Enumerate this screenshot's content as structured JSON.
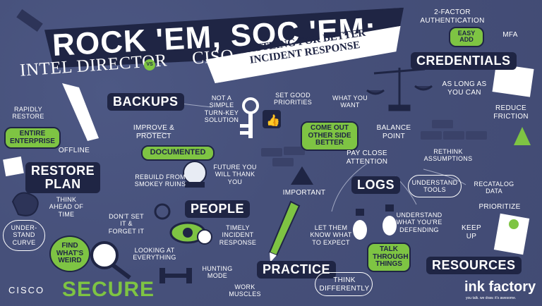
{
  "title": {
    "main": "ROCK 'EM, SOC 'EM:",
    "subtitle_left_1": "INTEL DIRECTOR",
    "vs": "VS",
    "subtitle_left_2": "CISO",
    "ribbon": "BATTLING FOR BETTER INCIDENT RESPONSE"
  },
  "credentials": {
    "label": "CREDENTIALS",
    "two_factor": "2-FACTOR AUTHENTICATION",
    "easy_add": "EASY ADD",
    "mfa": "MFA",
    "as_long": "AS LONG AS YOU CAN",
    "reduce": "REDUCE FRICTION"
  },
  "backups": {
    "label": "BACKUPS",
    "not_simple": "NOT A SIMPLE TURN-KEY SOLUTION",
    "improve": "IMPROVE & PROTECT",
    "rapidly": "RAPIDLY RESTORE",
    "entire": "ENTIRE ENTERPRISE",
    "offline": "OFFLINE"
  },
  "balance": {
    "set_good": "SET GOOD PRIORITIES",
    "what_you_want": "WHAT YOU WANT",
    "come_out": "COME OUT OTHER SIDE BETTER",
    "balance_point": "BALANCE POINT",
    "pay_close": "PAY CLOSE ATTENTION"
  },
  "restore": {
    "label_1": "RESTORE",
    "label_2": "PLAN",
    "documented": "DOCUMENTED",
    "future": "FUTURE YOU WILL THANK YOU",
    "rebuild": "REBUILD FROM SMOKEY RUINS",
    "think_ahead": "THINK AHEAD OF TIME"
  },
  "important": "IMPORTANT",
  "logs": {
    "label": "LOGS",
    "rethink": "RETHINK ASSUMPTIONS",
    "understand_tools": "UNDERSTAND TOOLS",
    "recatalog": "RECATALOG DATA",
    "prioritize": "PRIORITIZE",
    "understand_defending": "UNDERSTAND WHAT YOU'RE DEFENDING"
  },
  "people": {
    "label": "PEOPLE",
    "dont_set": "DON'T SET IT & FORGET IT",
    "timely": "TIMELY INCIDENT RESPONSE",
    "looking": "LOOKING AT EVERYTHING",
    "hunting": "HUNTING MODE",
    "work_muscles": "WORK MUSCLES"
  },
  "understand_curve": "UNDER-STAND CURVE",
  "find_weird": "FIND WHAT'S WEIRD",
  "secure": "SECURE",
  "cisco": "CISCO",
  "practice": {
    "label": "PRACTICE",
    "let_them_know": "LET THEM KNOW WHAT TO EXPECT",
    "talk_through": "TALK THROUGH THINGS",
    "think_differently": "THINK DIFFERENTLY"
  },
  "resources": {
    "label": "RESOURCES",
    "keep_up": "KEEP UP"
  },
  "brand": {
    "name": "ink factory",
    "tagline": "you talk. we draw. it's awesome."
  },
  "colors": {
    "background": "#46507a",
    "navy": "#1f2544",
    "green": "#7ec443",
    "white": "#ffffff"
  }
}
